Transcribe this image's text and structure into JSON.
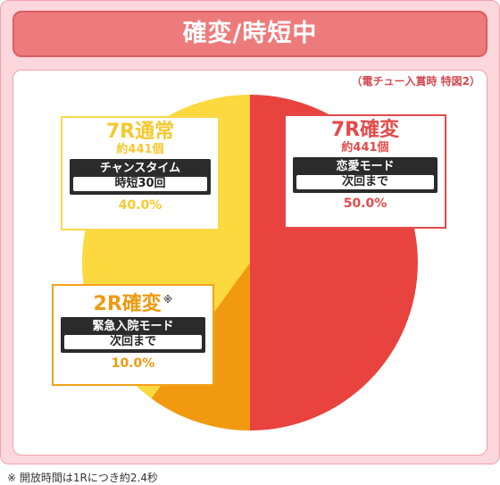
{
  "title": "確変/時短中",
  "source_note": "（電チュー入賞時 特図2）",
  "footnote": "※ 開放時間は1Rにつき約2.4秒",
  "chart_data": {
    "type": "pie",
    "title": "確変/時短中",
    "slices": [
      {
        "name": "7R確変",
        "value": 50.0,
        "pct_label": "50.0%",
        "count": "約441個",
        "mode": "恋愛モード",
        "duration": "次回まで",
        "color": "#e8433f"
      },
      {
        "name": "2R確変",
        "mark": "※",
        "value": 10.0,
        "pct_label": "10.0%",
        "mode": "緊急入院モード",
        "duration": "次回まで",
        "color": "#f19a10"
      },
      {
        "name": "7R通常",
        "value": 40.0,
        "pct_label": "40.0%",
        "count": "約441個",
        "mode": "チャンスタイム",
        "duration": "時短30回",
        "color": "#fcd93f"
      }
    ]
  }
}
